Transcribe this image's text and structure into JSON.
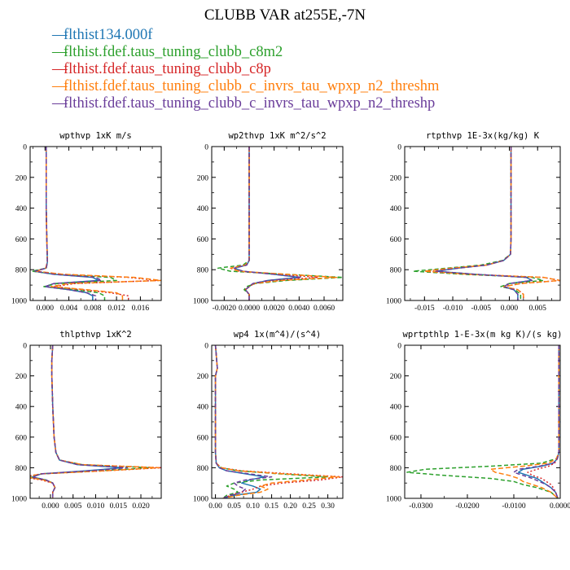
{
  "title": "CLUBB VAR at255E,-7N",
  "colors": {
    "blue": "#1f77b4",
    "green": "#2ca02c",
    "red": "#d62728",
    "orange": "#ff7f0e",
    "purple": "#6a3d9a"
  },
  "legend": [
    {
      "label": "flthist134.000f",
      "color": "#1f77b4"
    },
    {
      "label": "flthist.fdef.taus_tuning_clubb_c8m2",
      "color": "#2ca02c"
    },
    {
      "label": "flthist.fdef.taus_tuning_clubb_c8p",
      "color": "#d62728"
    },
    {
      "label": "flthist.fdef.taus_tuning_clubb_c_invrs_tau_wpxp_n2_threshm",
      "color": "#ff7f0e"
    },
    {
      "label": "flthist.fdef.taus_tuning_clubb_c_invrs_tau_wpxp_n2_threshp",
      "color": "#6a3d9a"
    }
  ],
  "chart_data": [
    {
      "type": "line",
      "title": "wpthvp  1xK m/s",
      "xlim": [
        -0.0025,
        0.0195
      ],
      "ylim": [
        1000,
        0
      ],
      "xticks": [
        0.0,
        0.004,
        0.008,
        0.012,
        0.016
      ],
      "xticklabels": [
        "0.000",
        "0.004",
        "0.008",
        "0.012",
        "0.016"
      ],
      "yticks": [
        0,
        200,
        400,
        600,
        800,
        1000
      ],
      "y": [
        0,
        200,
        400,
        600,
        750,
        790,
        810,
        830,
        850,
        870,
        890,
        910,
        930,
        950,
        970,
        1000
      ],
      "series": [
        {
          "color": "#1f77b4",
          "values": [
            0.0002,
            0.0002,
            0.0002,
            0.0003,
            0.0004,
            0.0002,
            -0.0018,
            0.0015,
            0.008,
            0.009,
            0.0015,
            0.0,
            0.004,
            0.007,
            0.008,
            0.008
          ]
        },
        {
          "color": "#2ca02c",
          "values": [
            0.0002,
            0.0002,
            0.0002,
            0.0003,
            0.0004,
            0.0002,
            -0.0022,
            0.002,
            0.011,
            0.012,
            0.002,
            -0.0002,
            0.005,
            0.009,
            0.01,
            0.01
          ]
        },
        {
          "color": "#d62728",
          "values": [
            0.0002,
            0.0002,
            0.0002,
            0.0003,
            0.0004,
            0.0001,
            -0.0015,
            0.003,
            0.014,
            0.019,
            0.005,
            0.0015,
            0.006,
            0.011,
            0.014,
            0.014
          ]
        },
        {
          "color": "#ff7f0e",
          "values": [
            0.0002,
            0.0002,
            0.0002,
            0.0003,
            0.0004,
            0.0001,
            -0.0015,
            0.003,
            0.015,
            0.0195,
            0.004,
            0.001,
            0.007,
            0.012,
            0.013,
            0.013
          ]
        },
        {
          "color": "#6a3d9a",
          "values": [
            0.0002,
            0.0002,
            0.0002,
            0.0003,
            0.0004,
            0.0002,
            -0.0017,
            0.0015,
            0.0085,
            0.0095,
            0.0015,
            0.0,
            0.004,
            0.007,
            0.0085,
            0.0085
          ]
        }
      ]
    },
    {
      "type": "line",
      "title": "wp2thvp  1xK m^2/s^2",
      "xlim": [
        -0.003,
        0.0075
      ],
      "ylim": [
        1000,
        0
      ],
      "xticks": [
        -0.002,
        0.0,
        0.002,
        0.004,
        0.006
      ],
      "xticklabels": [
        "-0.0020",
        "0.0000",
        "0.0020",
        "0.0040",
        "0.0060"
      ],
      "yticks": [
        0,
        200,
        400,
        600,
        800,
        1000
      ],
      "y": [
        0,
        200,
        400,
        600,
        740,
        770,
        790,
        810,
        830,
        850,
        870,
        890,
        910,
        930,
        960,
        1000
      ],
      "series": [
        {
          "color": "#1f77b4",
          "values": [
            0.0,
            0.0,
            0.0,
            0.0,
            0.0,
            -0.0002,
            -0.0012,
            -0.0005,
            0.002,
            0.004,
            0.0015,
            0.0003,
            0.0,
            -0.0003,
            0.0,
            0.0
          ]
        },
        {
          "color": "#2ca02c",
          "values": [
            0.0,
            0.0,
            0.0,
            0.0,
            0.0,
            -0.0005,
            -0.0025,
            -0.0015,
            0.003,
            0.0075,
            0.003,
            0.0005,
            -0.0002,
            -0.0004,
            0.0,
            0.0
          ]
        },
        {
          "color": "#d62728",
          "values": [
            0.0,
            0.0,
            0.0,
            0.0,
            0.0,
            -0.0003,
            -0.0015,
            -0.0008,
            0.0025,
            0.0055,
            0.002,
            0.0004,
            0.0,
            -0.0003,
            0.0,
            0.0
          ]
        },
        {
          "color": "#ff7f0e",
          "values": [
            0.0,
            0.0,
            0.0,
            0.0,
            0.0,
            -0.0003,
            -0.0015,
            -0.0008,
            0.003,
            0.007,
            0.0025,
            0.0004,
            0.0,
            -0.0003,
            0.0,
            0.0
          ]
        },
        {
          "color": "#6a3d9a",
          "values": [
            0.0,
            0.0,
            0.0,
            0.0,
            0.0,
            -0.0002,
            -0.0012,
            -0.0005,
            0.002,
            0.0042,
            0.0015,
            0.0003,
            0.0,
            -0.0003,
            0.0,
            0.0
          ]
        }
      ]
    },
    {
      "type": "line",
      "title": "rtpthvp  1E-3x(kg/kg) K",
      "xlim": [
        -0.0185,
        0.009
      ],
      "ylim": [
        1000,
        0
      ],
      "xticks": [
        -0.015,
        -0.01,
        -0.005,
        0.0,
        0.005
      ],
      "xticklabels": [
        "-0.015",
        "-0.010",
        "-0.005",
        "0.000",
        "0.005"
      ],
      "yticks": [
        0,
        200,
        400,
        600,
        800,
        1000
      ],
      "y": [
        0,
        200,
        400,
        600,
        700,
        740,
        770,
        790,
        810,
        830,
        850,
        870,
        890,
        910,
        930,
        960,
        1000
      ],
      "series": [
        {
          "color": "#1f77b4",
          "values": [
            0.0003,
            0.0003,
            0.0003,
            0.0003,
            0.0002,
            -0.001,
            -0.004,
            -0.009,
            -0.013,
            -0.006,
            0.003,
            0.004,
            0.0,
            -0.001,
            0.0008,
            0.0015,
            0.0015
          ]
        },
        {
          "color": "#2ca02c",
          "values": [
            0.0003,
            0.0003,
            0.0003,
            0.0003,
            0.0002,
            -0.0012,
            -0.005,
            -0.011,
            -0.017,
            -0.008,
            0.004,
            0.006,
            0.0,
            -0.0015,
            0.001,
            0.002,
            0.002
          ]
        },
        {
          "color": "#d62728",
          "values": [
            0.0003,
            0.0003,
            0.0003,
            0.0003,
            0.0002,
            -0.001,
            -0.004,
            -0.01,
            -0.015,
            -0.007,
            0.006,
            0.009,
            0.002,
            -0.001,
            0.0015,
            0.0025,
            0.0025
          ]
        },
        {
          "color": "#ff7f0e",
          "values": [
            0.0003,
            0.0003,
            0.0003,
            0.0003,
            0.0002,
            -0.001,
            -0.004,
            -0.01,
            -0.015,
            -0.007,
            0.006,
            0.009,
            0.002,
            -0.001,
            0.0015,
            0.0025,
            0.0025
          ]
        },
        {
          "color": "#6a3d9a",
          "values": [
            0.0003,
            0.0003,
            0.0003,
            0.0003,
            0.0002,
            -0.001,
            -0.004,
            -0.009,
            -0.013,
            -0.006,
            0.003,
            0.004,
            0.0,
            -0.001,
            0.0008,
            0.0015,
            0.0015
          ]
        }
      ]
    },
    {
      "type": "line",
      "title": "thlpthvp  1xK^2",
      "xlim": [
        -0.0045,
        0.0245
      ],
      "ylim": [
        1000,
        0
      ],
      "xticks": [
        0.0,
        0.005,
        0.01,
        0.015,
        0.02
      ],
      "xticklabels": [
        "0.000",
        "0.005",
        "0.010",
        "0.015",
        "0.020"
      ],
      "yticks": [
        0,
        200,
        400,
        600,
        800,
        1000
      ],
      "y": [
        0,
        100,
        200,
        400,
        600,
        700,
        750,
        780,
        800,
        820,
        840,
        860,
        880,
        900,
        930,
        960,
        1000
      ],
      "series": [
        {
          "color": "#1f77b4",
          "values": [
            0.0005,
            0.0003,
            0.0003,
            0.0005,
            0.0008,
            0.0012,
            0.002,
            0.006,
            0.016,
            0.008,
            -0.002,
            -0.004,
            -0.001,
            0.0005,
            0.001,
            0.0005,
            0.0005
          ]
        },
        {
          "color": "#2ca02c",
          "values": [
            0.0005,
            0.0003,
            0.0003,
            0.0005,
            0.0008,
            0.0012,
            0.002,
            0.007,
            0.022,
            0.011,
            -0.002,
            -0.005,
            -0.001,
            0.0005,
            0.001,
            0.0005,
            0.0005
          ]
        },
        {
          "color": "#d62728",
          "values": [
            0.0005,
            0.0003,
            0.0003,
            0.0005,
            0.0008,
            0.0012,
            0.002,
            0.007,
            0.0245,
            0.012,
            -0.002,
            -0.006,
            -0.002,
            0.0005,
            0.001,
            0.0005,
            0.0005
          ]
        },
        {
          "color": "#ff7f0e",
          "values": [
            0.0005,
            0.0003,
            0.0003,
            0.0005,
            0.0008,
            0.0012,
            0.002,
            0.007,
            0.024,
            0.012,
            -0.002,
            -0.0055,
            -0.0015,
            0.0005,
            0.001,
            0.0005,
            0.0005
          ]
        },
        {
          "color": "#6a3d9a",
          "values": [
            0.0005,
            0.0003,
            0.0003,
            0.0005,
            0.0008,
            0.0012,
            0.002,
            0.006,
            0.017,
            0.0085,
            -0.002,
            -0.004,
            -0.001,
            0.0005,
            0.001,
            0.0005,
            0.0005
          ]
        }
      ]
    },
    {
      "type": "line",
      "title": "wp4  1x(m^4)/(s^4)",
      "xlim": [
        -0.01,
        0.34
      ],
      "ylim": [
        1000,
        0
      ],
      "xticks": [
        0.0,
        0.05,
        0.1,
        0.15,
        0.2,
        0.25,
        0.3
      ],
      "xticklabels": [
        "0.00",
        "0.05",
        "0.10",
        "0.15",
        "0.20",
        "0.25",
        "0.30"
      ],
      "yticks": [
        0,
        200,
        400,
        600,
        800,
        1000
      ],
      "y": [
        0,
        150,
        200,
        400,
        600,
        700,
        770,
        800,
        820,
        840,
        860,
        880,
        900,
        920,
        940,
        960,
        980,
        1000
      ],
      "series": [
        {
          "color": "#1f77b4",
          "values": [
            0.0,
            0.005,
            0.0,
            0.0,
            0.0,
            0.0,
            0.002,
            0.01,
            0.03,
            0.08,
            0.13,
            0.09,
            0.07,
            0.1,
            0.12,
            0.11,
            0.05,
            0.02
          ]
        },
        {
          "color": "#2ca02c",
          "values": [
            0.0,
            0.005,
            0.0,
            0.0,
            0.0,
            0.0,
            0.002,
            0.015,
            0.06,
            0.17,
            0.3,
            0.12,
            0.05,
            0.03,
            0.05,
            0.06,
            0.03,
            0.02
          ]
        },
        {
          "color": "#d62728",
          "values": [
            0.0,
            0.005,
            0.0,
            0.0,
            0.0,
            0.0,
            0.002,
            0.015,
            0.07,
            0.2,
            0.34,
            0.28,
            0.18,
            0.12,
            0.1,
            0.07,
            0.04,
            0.02
          ]
        },
        {
          "color": "#ff7f0e",
          "values": [
            0.0,
            0.005,
            0.0,
            0.0,
            0.0,
            0.0,
            0.002,
            0.015,
            0.06,
            0.18,
            0.33,
            0.24,
            0.15,
            0.12,
            0.14,
            0.12,
            0.06,
            0.02
          ]
        },
        {
          "color": "#6a3d9a",
          "values": [
            0.0,
            0.005,
            0.0,
            0.0,
            0.0,
            0.0,
            0.002,
            0.01,
            0.03,
            0.09,
            0.15,
            0.08,
            0.05,
            0.06,
            0.08,
            0.07,
            0.04,
            0.02
          ]
        }
      ]
    },
    {
      "type": "line",
      "title": "wprtpthlp  1-E-3x(m kg K)/(s kg)",
      "xlim": [
        -0.0335,
        0.0
      ],
      "ylim": [
        1000,
        0
      ],
      "xticks": [
        -0.03,
        -0.02,
        -0.01,
        0.0
      ],
      "xticklabels": [
        "-0.0300",
        "-0.0200",
        "-0.0100",
        "0.0000"
      ],
      "yticks": [
        0,
        200,
        400,
        600,
        800,
        1000
      ],
      "y": [
        0,
        200,
        400,
        600,
        700,
        740,
        770,
        790,
        810,
        830,
        850,
        870,
        890,
        910,
        930,
        960,
        1000
      ],
      "series": [
        {
          "color": "#1f77b4",
          "values": [
            -0.0003,
            -0.0003,
            -0.0003,
            -0.0003,
            -0.0003,
            -0.0006,
            -0.0015,
            -0.004,
            -0.008,
            -0.009,
            -0.007,
            -0.005,
            -0.004,
            -0.003,
            -0.002,
            -0.001,
            -0.0005
          ]
        },
        {
          "color": "#2ca02c",
          "values": [
            -0.0003,
            -0.0003,
            -0.0003,
            -0.0003,
            -0.0003,
            -0.0008,
            -0.004,
            -0.015,
            -0.029,
            -0.033,
            -0.025,
            -0.015,
            -0.01,
            -0.008,
            -0.005,
            -0.002,
            -0.0005
          ]
        },
        {
          "color": "#d62728",
          "values": [
            -0.0003,
            -0.0003,
            -0.0003,
            -0.0003,
            -0.0003,
            -0.0006,
            -0.0012,
            -0.0025,
            -0.005,
            -0.007,
            -0.006,
            -0.004,
            -0.003,
            -0.002,
            -0.0015,
            -0.001,
            -0.0005
          ]
        },
        {
          "color": "#ff7f0e",
          "values": [
            -0.0003,
            -0.0003,
            -0.0003,
            -0.0003,
            -0.0003,
            -0.0008,
            -0.0025,
            -0.008,
            -0.015,
            -0.014,
            -0.011,
            -0.009,
            -0.008,
            -0.006,
            -0.004,
            -0.002,
            -0.0005
          ]
        },
        {
          "color": "#6a3d9a",
          "values": [
            -0.0003,
            -0.0003,
            -0.0003,
            -0.0003,
            -0.0003,
            -0.0006,
            -0.0015,
            -0.0045,
            -0.009,
            -0.01,
            -0.008,
            -0.006,
            -0.0045,
            -0.003,
            -0.002,
            -0.001,
            -0.0005
          ]
        }
      ]
    }
  ]
}
